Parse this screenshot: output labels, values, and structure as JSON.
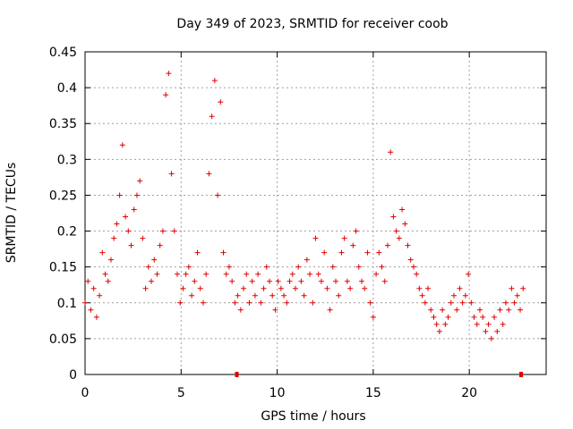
{
  "chart_data": {
    "type": "scatter",
    "title": "Day 349 of 2023, SRMTID for receiver coob",
    "xlabel": "GPS time / hours",
    "ylabel": "SRMTID / TECUs",
    "xlim": [
      0,
      24
    ],
    "ylim": [
      0,
      0.45
    ],
    "grid": true,
    "marker": "+",
    "color": "#e00000",
    "x_ticks": [
      0,
      5,
      10,
      15,
      20
    ],
    "x_tick_labels": [
      "0",
      "5",
      "10",
      "15",
      "20"
    ],
    "y_ticks": [
      0,
      0.05,
      0.1,
      0.15,
      0.2,
      0.25,
      0.3,
      0.35,
      0.4,
      0.45
    ],
    "y_tick_labels": [
      "0",
      "0.05",
      "0.1",
      "0.15",
      "0.2",
      "0.25",
      "0.3",
      "0.35",
      "0.4",
      "0.45"
    ],
    "series": [
      {
        "name": "SRMTID",
        "x": [
          0.0,
          0.15,
          0.3,
          0.45,
          0.6,
          0.75,
          0.9,
          1.05,
          1.2,
          1.35,
          1.5,
          1.65,
          1.8,
          1.95,
          2.1,
          2.25,
          2.4,
          2.55,
          2.7,
          2.85,
          3.0,
          3.15,
          3.3,
          3.45,
          3.6,
          3.75,
          3.9,
          4.05,
          4.2,
          4.35,
          4.5,
          4.65,
          4.8,
          4.95,
          5.1,
          5.25,
          5.4,
          5.55,
          5.7,
          5.85,
          6.0,
          6.15,
          6.3,
          6.45,
          6.6,
          6.75,
          6.9,
          7.05,
          7.2,
          7.35,
          7.5,
          7.65,
          7.8,
          7.95,
          8.1,
          8.25,
          8.4,
          8.55,
          8.7,
          8.85,
          9.0,
          9.15,
          9.3,
          9.45,
          9.6,
          9.75,
          9.9,
          10.05,
          10.2,
          10.35,
          10.5,
          10.65,
          10.8,
          10.95,
          11.1,
          11.25,
          11.4,
          11.55,
          11.7,
          11.85,
          12.0,
          12.15,
          12.3,
          12.45,
          12.6,
          12.75,
          12.9,
          13.05,
          13.2,
          13.35,
          13.5,
          13.65,
          13.8,
          13.95,
          14.1,
          14.25,
          14.4,
          14.55,
          14.7,
          14.85,
          15.0,
          15.15,
          15.3,
          15.45,
          15.6,
          15.75,
          15.9,
          16.05,
          16.2,
          16.35,
          16.5,
          16.65,
          16.8,
          16.95,
          17.1,
          17.25,
          17.4,
          17.55,
          17.7,
          17.85,
          18.0,
          18.15,
          18.3,
          18.45,
          18.6,
          18.75,
          18.9,
          19.05,
          19.2,
          19.35,
          19.5,
          19.65,
          19.8,
          19.95,
          20.1,
          20.25,
          20.4,
          20.55,
          20.7,
          20.85,
          21.0,
          21.15,
          21.3,
          21.45,
          21.6,
          21.75,
          21.9,
          22.05,
          22.2,
          22.35,
          22.5,
          22.65,
          22.8
        ],
        "y": [
          0.1,
          0.13,
          0.09,
          0.12,
          0.08,
          0.11,
          0.17,
          0.14,
          0.13,
          0.16,
          0.19,
          0.21,
          0.25,
          0.32,
          0.22,
          0.2,
          0.18,
          0.23,
          0.25,
          0.27,
          0.19,
          0.12,
          0.15,
          0.13,
          0.16,
          0.14,
          0.18,
          0.2,
          0.39,
          0.42,
          0.28,
          0.2,
          0.14,
          0.1,
          0.12,
          0.14,
          0.15,
          0.11,
          0.13,
          0.17,
          0.12,
          0.1,
          0.14,
          0.28,
          0.36,
          0.41,
          0.25,
          0.38,
          0.17,
          0.14,
          0.15,
          0.13,
          0.1,
          0.11,
          0.09,
          0.12,
          0.14,
          0.1,
          0.13,
          0.11,
          0.14,
          0.1,
          0.12,
          0.15,
          0.13,
          0.11,
          0.09,
          0.13,
          0.12,
          0.11,
          0.1,
          0.13,
          0.14,
          0.12,
          0.15,
          0.13,
          0.11,
          0.16,
          0.14,
          0.1,
          0.19,
          0.14,
          0.13,
          0.17,
          0.12,
          0.09,
          0.15,
          0.13,
          0.11,
          0.17,
          0.19,
          0.13,
          0.12,
          0.18,
          0.2,
          0.15,
          0.13,
          0.12,
          0.17,
          0.1,
          0.08,
          0.14,
          0.17,
          0.15,
          0.13,
          0.18,
          0.31,
          0.22,
          0.2,
          0.19,
          0.23,
          0.21,
          0.18,
          0.16,
          0.15,
          0.14,
          0.12,
          0.11,
          0.1,
          0.12,
          0.09,
          0.08,
          0.07,
          0.06,
          0.09,
          0.07,
          0.08,
          0.1,
          0.11,
          0.09,
          0.12,
          0.1,
          0.11,
          0.14,
          0.1,
          0.08,
          0.07,
          0.09,
          0.08,
          0.06,
          0.07,
          0.05,
          0.08,
          0.06,
          0.09,
          0.07,
          0.1,
          0.09,
          0.12,
          0.1,
          0.11,
          0.09,
          0.12
        ]
      }
    ],
    "markers_on_axis": [
      7.9,
      22.7
    ]
  }
}
